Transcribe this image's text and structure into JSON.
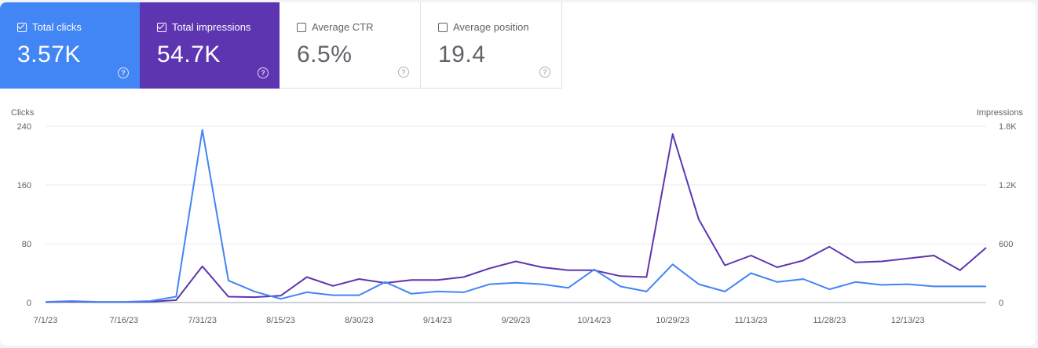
{
  "metrics": [
    {
      "label": "Total clicks",
      "value": "3.57K",
      "checked": true,
      "color": "#4285f4"
    },
    {
      "label": "Total impressions",
      "value": "54.7K",
      "checked": true,
      "color": "#5e35b1"
    },
    {
      "label": "Average CTR",
      "value": "6.5%",
      "checked": false
    },
    {
      "label": "Average position",
      "value": "19.4",
      "checked": false
    }
  ],
  "help_glyph": "?",
  "chart_data": {
    "type": "line",
    "x": [
      "7/1/23",
      "7/6/23",
      "7/11/23",
      "7/16/23",
      "7/21/23",
      "7/26/23",
      "7/31/23",
      "8/5/23",
      "8/10/23",
      "8/15/23",
      "8/20/23",
      "8/25/23",
      "8/30/23",
      "9/4/23",
      "9/9/23",
      "9/14/23",
      "9/19/23",
      "9/24/23",
      "9/29/23",
      "10/4/23",
      "10/9/23",
      "10/14/23",
      "10/19/23",
      "10/24/23",
      "10/29/23",
      "11/3/23",
      "11/8/23",
      "11/13/23",
      "11/18/23",
      "11/23/23",
      "11/28/23",
      "12/3/23",
      "12/8/23",
      "12/13/23",
      "12/18/23",
      "12/23/23",
      "12/28/23"
    ],
    "x_ticks": [
      "7/1/23",
      "7/16/23",
      "7/31/23",
      "8/15/23",
      "8/30/23",
      "9/14/23",
      "9/29/23",
      "10/14/23",
      "10/29/23",
      "11/13/23",
      "11/28/23",
      "12/13/23"
    ],
    "series": [
      {
        "name": "Clicks",
        "axis": "left",
        "color": "#4285f4",
        "values": [
          1,
          2,
          1,
          1,
          2,
          8,
          235,
          30,
          15,
          5,
          14,
          10,
          10,
          28,
          12,
          15,
          14,
          25,
          27,
          25,
          20,
          45,
          22,
          15,
          52,
          25,
          15,
          40,
          28,
          32,
          18,
          28,
          24,
          25,
          22,
          22,
          22
        ]
      },
      {
        "name": "Impressions",
        "axis": "right",
        "color": "#5e35b1",
        "values": [
          5,
          10,
          5,
          5,
          8,
          25,
          370,
          60,
          55,
          70,
          260,
          170,
          240,
          200,
          230,
          230,
          260,
          350,
          420,
          360,
          330,
          330,
          270,
          260,
          1720,
          850,
          380,
          480,
          360,
          430,
          570,
          410,
          420,
          450,
          480,
          330,
          560
        ]
      }
    ],
    "left_axis": {
      "label": "Clicks",
      "ticks": [
        "240",
        "160",
        "80",
        "0"
      ],
      "range": [
        0,
        240
      ]
    },
    "right_axis": {
      "label": "Impressions",
      "ticks": [
        "1.8K",
        "1.2K",
        "600",
        "0"
      ],
      "range": [
        0,
        1800
      ]
    },
    "grid": true
  }
}
